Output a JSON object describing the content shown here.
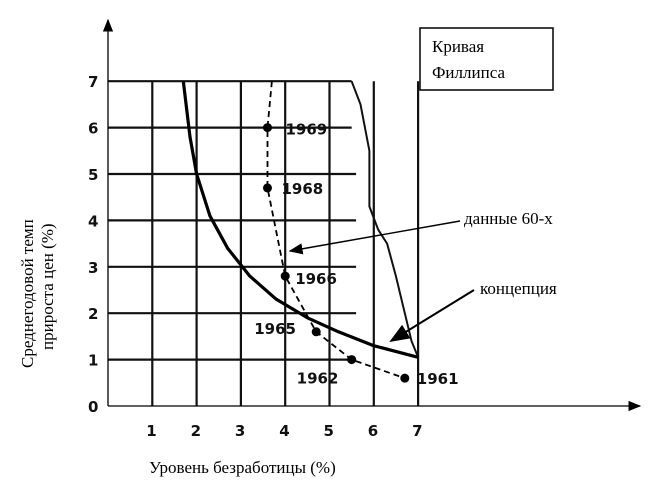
{
  "chart_data": {
    "type": "line",
    "title": "Кривая Филлипса",
    "title_lines": [
      "Кривая",
      "Филлипса"
    ],
    "xlabel": "Уровень безработицы (%)",
    "ylabel_lines": [
      "Среднегодовой темп",
      "прироста цен (%)"
    ],
    "xlim": [
      0,
      7
    ],
    "ylim": [
      0,
      7
    ],
    "x_ticks": [
      "1",
      "2",
      "3",
      "4",
      "5",
      "6",
      "7"
    ],
    "y_ticks": [
      "0",
      "1",
      "2",
      "3",
      "4",
      "5",
      "6",
      "7"
    ],
    "grid": true,
    "series": [
      {
        "name": "концепция",
        "style": "solid",
        "x": [
          1.7,
          1.85,
          2.0,
          2.3,
          2.7,
          3.2,
          3.8,
          4.5,
          5.2,
          6.0,
          7.0
        ],
        "y": [
          7.0,
          5.8,
          5.0,
          4.1,
          3.4,
          2.8,
          2.3,
          1.9,
          1.6,
          1.3,
          1.05
        ]
      },
      {
        "name": "данные 60-х",
        "style": "dashed",
        "points": [
          {
            "label": "1961",
            "x": 6.7,
            "y": 0.6
          },
          {
            "label": "1962",
            "x": 5.5,
            "y": 1.0
          },
          {
            "label": "1965",
            "x": 4.7,
            "y": 1.6
          },
          {
            "label": "1966",
            "x": 4.0,
            "y": 2.8
          },
          {
            "label": "1968",
            "x": 3.6,
            "y": 4.7
          },
          {
            "label": "1969",
            "x": 3.6,
            "y": 6.0
          }
        ],
        "extension": {
          "x": [
            3.6,
            3.7
          ],
          "y": [
            6.0,
            7.0
          ]
        }
      }
    ],
    "envelope": {
      "x": [
        5.5,
        5.7,
        5.9,
        5.9,
        6.1,
        6.3,
        6.5,
        6.7,
        6.85,
        7.0
      ],
      "y": [
        7.0,
        6.5,
        5.5,
        4.3,
        3.8,
        3.5,
        2.8,
        2.0,
        1.4,
        1.05
      ]
    },
    "annotations": [
      {
        "text": "данные 60-х"
      },
      {
        "text": "концепция"
      }
    ]
  }
}
